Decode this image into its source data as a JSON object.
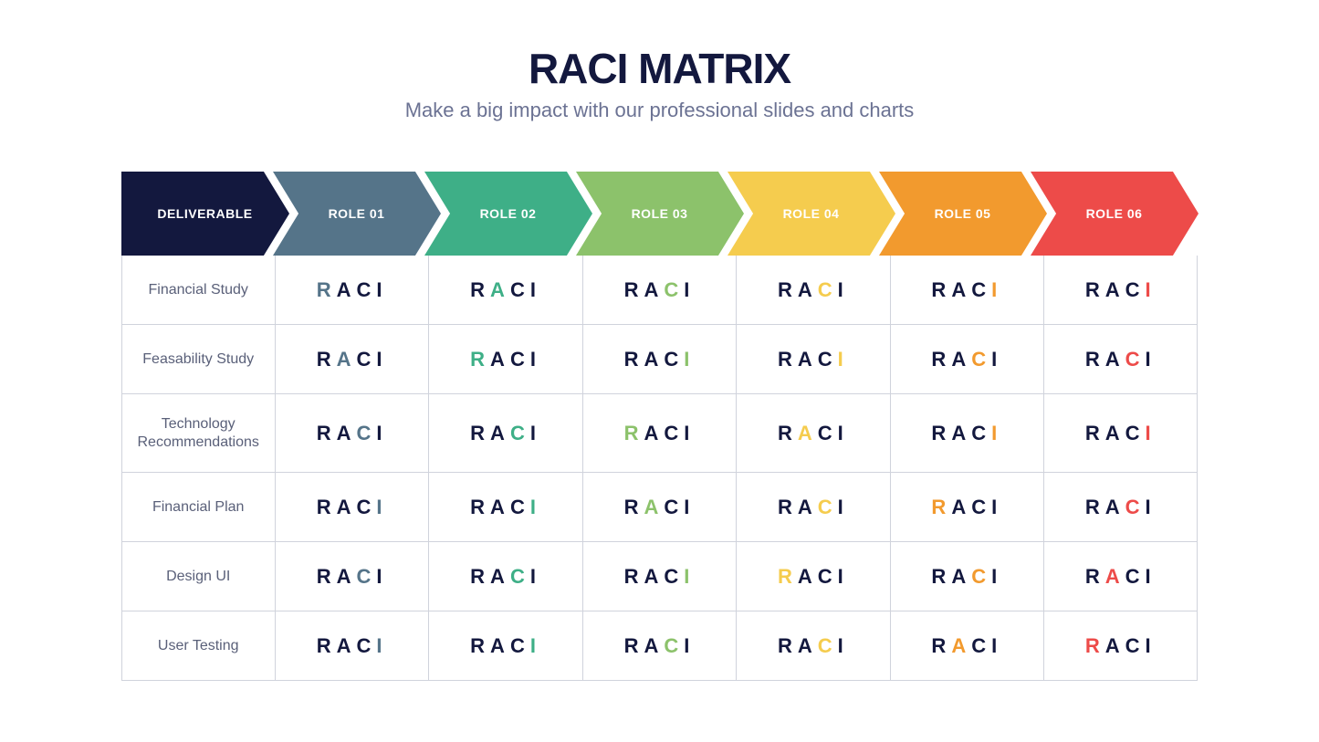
{
  "title": "RACI MATRIX",
  "subtitle": "Make a big impact with our professional slides and charts",
  "title_color": "#13183e",
  "title_fontsize": 46,
  "subtitle_color": "#6b7293",
  "subtitle_fontsize": 22,
  "letters": [
    "R",
    "A",
    "C",
    "I"
  ],
  "base_letter_color": "#13183e",
  "border_color": "#d0d3dc",
  "deliverable_text_color": "#5a6079",
  "header": {
    "deliverable_label": "DELIVERABLE",
    "deliverable_bg": "#13183e",
    "deliverable_text": "#ffffff",
    "roles": [
      {
        "label": "ROLE 01",
        "bg": "#557489",
        "text": "#ffffff"
      },
      {
        "label": "ROLE 02",
        "bg": "#3eaf87",
        "text": "#ffffff"
      },
      {
        "label": "ROLE 03",
        "bg": "#8cc26b",
        "text": "#ffffff"
      },
      {
        "label": "ROLE 04",
        "bg": "#f5cc4e",
        "text": "#ffffff"
      },
      {
        "label": "ROLE 05",
        "bg": "#f29a2e",
        "text": "#ffffff"
      },
      {
        "label": "ROLE 06",
        "bg": "#ed4b49",
        "text": "#ffffff"
      }
    ]
  },
  "role_accent_colors": [
    "#557489",
    "#3eaf87",
    "#8cc26b",
    "#f5cc4e",
    "#f29a2e",
    "#ed4b49"
  ],
  "rows": [
    {
      "label": "Financial Study",
      "highlights": [
        0,
        1,
        2,
        2,
        3,
        3
      ]
    },
    {
      "label": "Feasability Study",
      "highlights": [
        1,
        0,
        3,
        3,
        2,
        2
      ]
    },
    {
      "label": "Technology Recommendations",
      "highlights": [
        2,
        2,
        0,
        1,
        3,
        3
      ],
      "tall": true
    },
    {
      "label": "Financial Plan",
      "highlights": [
        3,
        3,
        1,
        2,
        0,
        2
      ]
    },
    {
      "label": "Design UI",
      "highlights": [
        2,
        2,
        3,
        0,
        2,
        1
      ]
    },
    {
      "label": "User Testing",
      "highlights": [
        3,
        3,
        2,
        2,
        1,
        0
      ]
    }
  ]
}
